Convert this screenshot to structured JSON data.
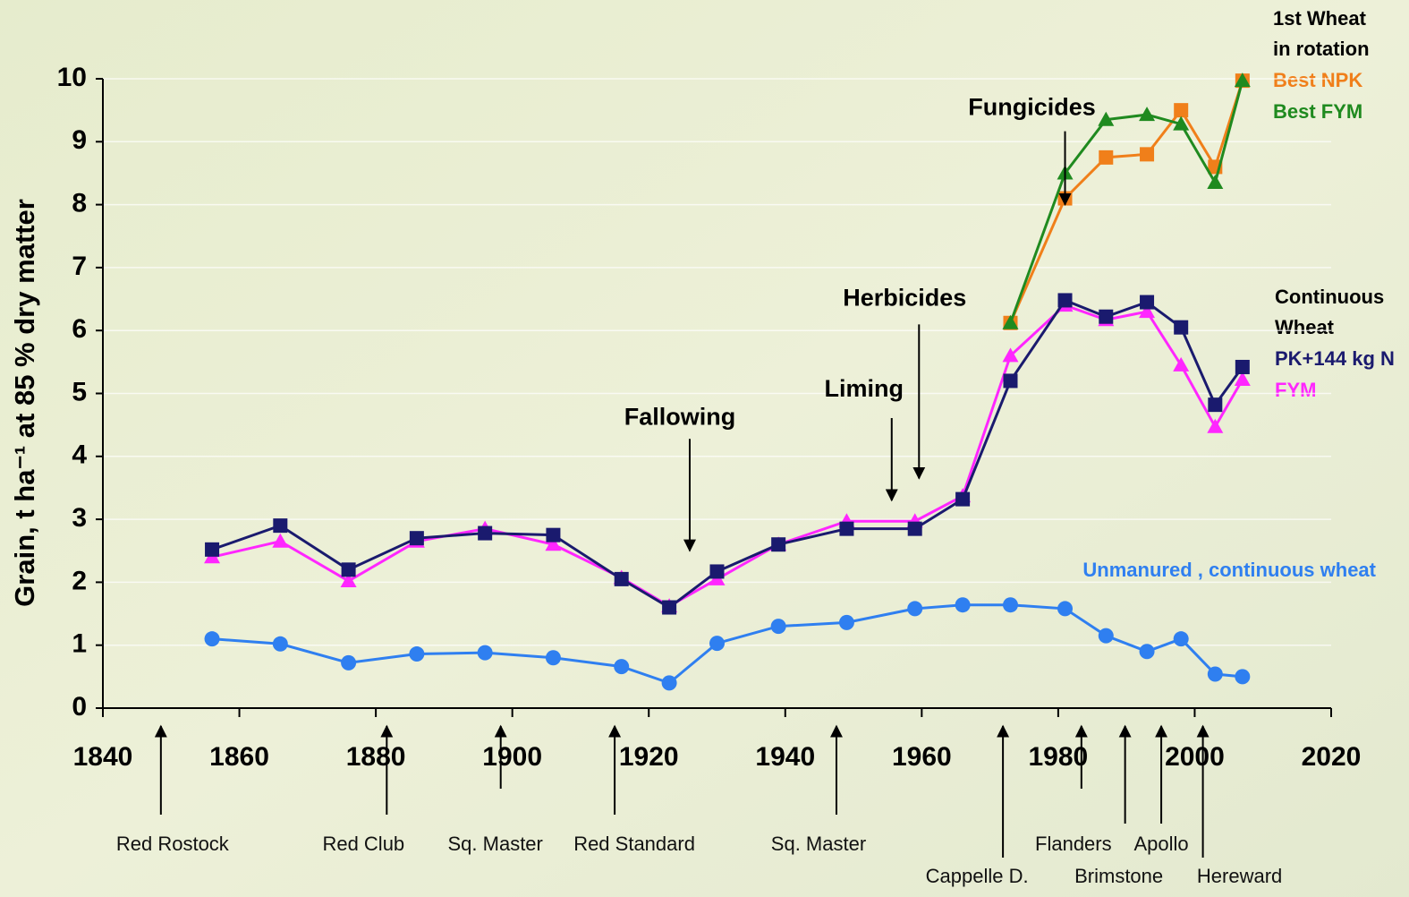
{
  "chart_data": {
    "type": "line",
    "y_label": "Grain, t ha⁻¹ at 85 % dry matter",
    "xlim": [
      1840,
      2020
    ],
    "xticks": [
      1840,
      1860,
      1880,
      1900,
      1920,
      1940,
      1960,
      1980,
      2000,
      2020
    ],
    "ylim": [
      0,
      10
    ],
    "yticks": [
      0,
      1,
      2,
      3,
      4,
      5,
      6,
      7,
      8,
      9,
      10
    ],
    "grid": true,
    "legend_groups": [
      [
        "1st Wheat",
        "in rotation"
      ],
      [
        "Continuous",
        "Wheat"
      ]
    ],
    "series": [
      {
        "name": "Best NPK",
        "color": "#f07f1a",
        "marker": "square",
        "x": [
          1973,
          1981,
          1987,
          1993,
          1998,
          2003,
          2007
        ],
        "values": [
          6.12,
          8.1,
          8.75,
          8.8,
          9.5,
          8.6,
          9.97
        ]
      },
      {
        "name": "Best FYM",
        "color": "#1f8a1f",
        "marker": "triangle",
        "x": [
          1973,
          1981,
          1987,
          1993,
          1998,
          2003,
          2007
        ],
        "values": [
          6.12,
          8.5,
          9.35,
          9.43,
          9.28,
          8.35,
          9.97
        ]
      },
      {
        "name": "FYM",
        "color": "#ff26ff",
        "marker": "triangle",
        "x": [
          1856,
          1866,
          1876,
          1886,
          1896,
          1906,
          1916,
          1923,
          1930,
          1939,
          1949,
          1959,
          1966,
          1973,
          1981,
          1987,
          1993,
          1998,
          2003,
          2007
        ],
        "values": [
          2.4,
          2.65,
          2.02,
          2.65,
          2.85,
          2.6,
          2.07,
          1.62,
          2.05,
          2.6,
          2.97,
          2.97,
          3.37,
          5.6,
          6.4,
          6.17,
          6.3,
          5.45,
          4.47,
          5.22
        ]
      },
      {
        "name": "PK+144 kg N",
        "color": "#1a1a6e",
        "marker": "square",
        "x": [
          1856,
          1866,
          1876,
          1886,
          1896,
          1906,
          1916,
          1923,
          1930,
          1939,
          1949,
          1959,
          1966,
          1973,
          1981,
          1987,
          1993,
          1998,
          2003,
          2007
        ],
        "values": [
          2.52,
          2.9,
          2.2,
          2.7,
          2.78,
          2.75,
          2.05,
          1.6,
          2.17,
          2.6,
          2.85,
          2.85,
          3.32,
          5.2,
          6.48,
          6.22,
          6.45,
          6.05,
          4.82,
          5.42
        ]
      },
      {
        "name": "Unmanured , continuous wheat",
        "color": "#2f7ff0",
        "marker": "circle",
        "x": [
          1856,
          1866,
          1876,
          1886,
          1896,
          1906,
          1916,
          1923,
          1930,
          1939,
          1949,
          1959,
          1966,
          1973,
          1981,
          1987,
          1993,
          1998,
          2003,
          2007
        ],
        "values": [
          1.1,
          1.02,
          0.72,
          0.86,
          0.88,
          0.8,
          0.66,
          0.4,
          1.03,
          1.3,
          1.36,
          1.58,
          1.64,
          1.64,
          1.58,
          1.15,
          0.9,
          1.1,
          0.54,
          0.5
        ]
      }
    ],
    "annotations": [
      {
        "text": "Fungicides",
        "x": 1981,
        "y": 8.0
      },
      {
        "text": "Herbicides",
        "x": 1959.6,
        "y": 3.65
      },
      {
        "text": "Liming",
        "x": 1955.6,
        "y": 3.3
      },
      {
        "text": "Fallowing",
        "x": 1926,
        "y": 2.5
      }
    ],
    "varieties": [
      {
        "text": "Red Rostock",
        "x": 1848.5
      },
      {
        "text": "Red Club",
        "x": 1881.6
      },
      {
        "text": "Sq. Master",
        "x": 1898.3
      },
      {
        "text": "Red Standard",
        "x": 1915
      },
      {
        "text": "Sq. Master",
        "x": 1947.5
      },
      {
        "text": "Cappelle D.",
        "x": 1971.9
      },
      {
        "text": "Flanders",
        "x": 1983.4
      },
      {
        "text": "Brimstone",
        "x": 1989.8
      },
      {
        "text": "Apollo",
        "x": 1995.1
      },
      {
        "text": "Hereward",
        "x": 2001.2
      }
    ]
  }
}
